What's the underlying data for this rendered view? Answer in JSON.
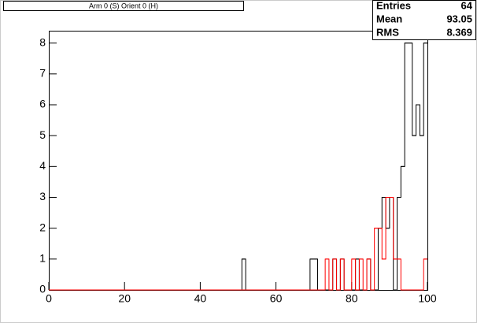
{
  "chart_data": {
    "type": "histogram",
    "title": "Arm 0 (S) Orient 0 (H)",
    "bins": [
      0,
      1,
      2,
      3,
      4,
      5,
      6,
      7,
      8,
      9,
      10,
      11,
      12,
      13,
      14,
      15,
      16,
      17,
      18,
      19,
      20,
      21,
      22,
      23,
      24,
      25,
      26,
      27,
      28,
      29,
      30,
      31,
      32,
      33,
      34,
      35,
      36,
      37,
      38,
      39,
      40,
      41,
      42,
      43,
      44,
      45,
      46,
      47,
      48,
      49,
      50,
      51,
      52,
      53,
      54,
      55,
      56,
      57,
      58,
      59,
      60,
      61,
      62,
      63,
      64,
      65,
      66,
      67,
      68,
      69,
      70,
      71,
      72,
      73,
      74,
      75,
      76,
      77,
      78,
      79,
      80,
      81,
      82,
      83,
      84,
      85,
      86,
      87,
      88,
      89,
      90,
      91,
      92,
      93,
      94,
      95,
      96,
      97,
      98,
      99,
      100
    ],
    "series": [
      {
        "color": "#000000",
        "values": [
          0,
          0,
          0,
          0,
          0,
          0,
          0,
          0,
          0,
          0,
          0,
          0,
          0,
          0,
          0,
          0,
          0,
          0,
          0,
          0,
          0,
          0,
          0,
          0,
          0,
          0,
          0,
          0,
          0,
          0,
          0,
          0,
          0,
          0,
          0,
          0,
          0,
          0,
          0,
          0,
          0,
          0,
          0,
          0,
          0,
          0,
          0,
          0,
          0,
          0,
          0,
          1,
          0,
          0,
          0,
          0,
          0,
          0,
          0,
          0,
          0,
          0,
          0,
          0,
          0,
          0,
          0,
          0,
          0,
          1,
          1,
          0,
          0,
          0,
          0,
          1,
          0,
          1,
          0,
          0,
          0,
          1,
          0,
          0,
          1,
          0,
          0,
          2,
          3,
          2,
          3,
          0,
          3,
          4,
          8,
          8,
          5,
          6,
          5,
          8
        ]
      },
      {
        "color": "#ff0000",
        "values": [
          0,
          0,
          0,
          0,
          0,
          0,
          0,
          0,
          0,
          0,
          0,
          0,
          0,
          0,
          0,
          0,
          0,
          0,
          0,
          0,
          0,
          0,
          0,
          0,
          0,
          0,
          0,
          0,
          0,
          0,
          0,
          0,
          0,
          0,
          0,
          0,
          0,
          0,
          0,
          0,
          0,
          0,
          0,
          0,
          0,
          0,
          0,
          0,
          0,
          0,
          0,
          0,
          0,
          0,
          0,
          0,
          0,
          0,
          0,
          0,
          0,
          0,
          0,
          0,
          0,
          0,
          0,
          0,
          0,
          0,
          0,
          0,
          0,
          1,
          0,
          1,
          0,
          1,
          0,
          0,
          1,
          0,
          1,
          0,
          1,
          0,
          2,
          2,
          1,
          3,
          3,
          1,
          1,
          0,
          0,
          0,
          0,
          0,
          0,
          1
        ]
      }
    ],
    "xlim": [
      0,
      100
    ],
    "xticks": [
      0,
      20,
      40,
      60,
      80,
      100
    ],
    "ylim": [
      0,
      8.4
    ],
    "yticks": [
      0,
      1,
      2,
      3,
      4,
      5,
      6,
      7,
      8
    ],
    "stats": [
      {
        "label": "Entries",
        "value": 64
      },
      {
        "label": "Mean",
        "value": 93.05
      },
      {
        "label": "RMS",
        "value": 8.369
      }
    ]
  }
}
